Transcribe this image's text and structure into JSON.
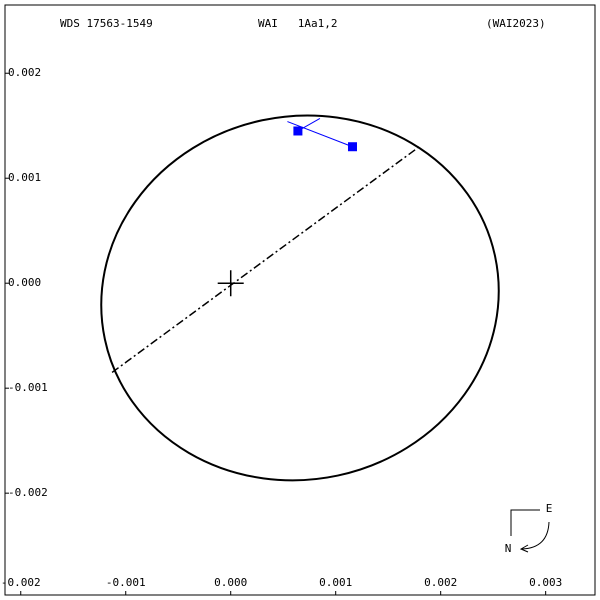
{
  "chart_data": {
    "type": "orbit",
    "header": [
      "WDS 17563-1549",
      "WAI   1Aa1,2",
      "(WAI2023)"
    ],
    "xlim": [
      -0.00215,
      0.00347
    ],
    "ylim": [
      -0.00297,
      0.00265
    ],
    "xticks": [
      {
        "value": -0.002,
        "label": "-0.002"
      },
      {
        "value": -0.001,
        "label": "-0.001"
      },
      {
        "value": 0,
        "label": "0.000"
      },
      {
        "value": 0.001,
        "label": "0.001"
      },
      {
        "value": 0.002,
        "label": "0.002"
      },
      {
        "value": 0.003,
        "label": "0.003"
      }
    ],
    "yticks": [
      {
        "value": 0.002,
        "label": "0.002"
      },
      {
        "value": 0.001,
        "label": "0.001"
      },
      {
        "value": 0,
        "label": "0.000"
      },
      {
        "value": -0.001,
        "label": "-0.001"
      },
      {
        "value": -0.002,
        "label": "-0.002"
      }
    ],
    "orbit": {
      "cx": 0.00066,
      "cy": -0.00014,
      "rx": 0.0019,
      "ry": 0.00173,
      "angle": 12,
      "color": "#000000"
    },
    "node_line": {
      "x": [
        -0.00113,
        0.00181
      ],
      "y": [
        -0.00085,
        0.00131
      ]
    },
    "observations": {
      "color": "#0000ff",
      "x": [
        0.00064,
        0.00116
      ],
      "y": [
        0.00145,
        0.0013
      ],
      "predicted_x": [
        0.00085,
        0.00054
      ],
      "predicted_y": [
        0.00157,
        0.00154
      ]
    },
    "compass": [
      "E",
      "N"
    ]
  }
}
